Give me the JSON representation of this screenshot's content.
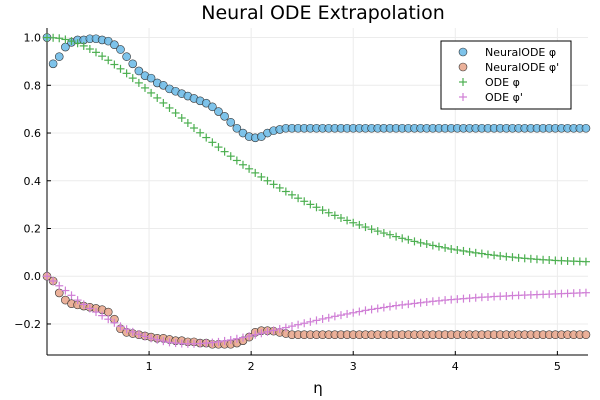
{
  "chart_data": {
    "type": "scatter",
    "title": "Neural ODE Extrapolation",
    "xlabel": "η",
    "ylabel": "",
    "xlim": [
      0.0,
      5.3
    ],
    "ylim": [
      -0.33,
      1.04
    ],
    "xticks": [
      1,
      2,
      3,
      4,
      5
    ],
    "yticks": [
      -0.2,
      0.0,
      0.2,
      0.4,
      0.6,
      0.8,
      1.0
    ],
    "xtick_labels": [
      "1",
      "2",
      "3",
      "4",
      "5"
    ],
    "ytick_labels": [
      "−0.2",
      "0.0",
      "0.2",
      "0.4",
      "0.6",
      "0.8",
      "1.0"
    ],
    "grid": true,
    "legend_position": "top-right",
    "series": [
      {
        "name": "NeuralODE φ",
        "marker": "circle",
        "color": "#67b8e6",
        "x": [
          0.0,
          0.06,
          0.12,
          0.18,
          0.24,
          0.3,
          0.36,
          0.42,
          0.48,
          0.54,
          0.6,
          0.66,
          0.72,
          0.78,
          0.84,
          0.9,
          0.96,
          1.02,
          1.08,
          1.14,
          1.2,
          1.26,
          1.32,
          1.38,
          1.44,
          1.5,
          1.56,
          1.62,
          1.68,
          1.74,
          1.8,
          1.86,
          1.92,
          1.98,
          2.04,
          2.1,
          2.16,
          2.22,
          2.28,
          2.34,
          2.4,
          2.46,
          2.52,
          2.58,
          2.64,
          2.7,
          2.76,
          2.82,
          2.88,
          2.94,
          3.0,
          3.06,
          3.12,
          3.18,
          3.24,
          3.3,
          3.36,
          3.42,
          3.48,
          3.54,
          3.6,
          3.66,
          3.72,
          3.78,
          3.84,
          3.9,
          3.96,
          4.02,
          4.08,
          4.14,
          4.2,
          4.26,
          4.32,
          4.38,
          4.44,
          4.5,
          4.56,
          4.62,
          4.68,
          4.74,
          4.8,
          4.86,
          4.92,
          4.98,
          5.04,
          5.1,
          5.16,
          5.22,
          5.28
        ],
        "y": [
          1.0,
          0.89,
          0.92,
          0.96,
          0.98,
          0.99,
          0.99,
          0.995,
          0.995,
          0.99,
          0.985,
          0.97,
          0.95,
          0.92,
          0.89,
          0.86,
          0.84,
          0.83,
          0.81,
          0.8,
          0.785,
          0.775,
          0.765,
          0.755,
          0.745,
          0.735,
          0.725,
          0.71,
          0.69,
          0.67,
          0.645,
          0.62,
          0.6,
          0.585,
          0.58,
          0.585,
          0.6,
          0.61,
          0.615,
          0.62,
          0.62,
          0.62,
          0.62,
          0.62,
          0.62,
          0.62,
          0.62,
          0.62,
          0.62,
          0.62,
          0.62,
          0.62,
          0.62,
          0.62,
          0.62,
          0.62,
          0.62,
          0.62,
          0.62,
          0.62,
          0.62,
          0.62,
          0.62,
          0.62,
          0.62,
          0.62,
          0.62,
          0.62,
          0.62,
          0.62,
          0.62,
          0.62,
          0.62,
          0.62,
          0.62,
          0.62,
          0.62,
          0.62,
          0.62,
          0.62,
          0.62,
          0.62,
          0.62,
          0.62,
          0.62,
          0.62,
          0.62,
          0.62,
          0.62
        ]
      },
      {
        "name": "NeuralODE φ'",
        "marker": "circle",
        "color": "#e8a388",
        "x": [
          0.0,
          0.06,
          0.12,
          0.18,
          0.24,
          0.3,
          0.36,
          0.42,
          0.48,
          0.54,
          0.6,
          0.66,
          0.72,
          0.78,
          0.84,
          0.9,
          0.96,
          1.02,
          1.08,
          1.14,
          1.2,
          1.26,
          1.32,
          1.38,
          1.44,
          1.5,
          1.56,
          1.62,
          1.68,
          1.74,
          1.8,
          1.86,
          1.92,
          1.98,
          2.04,
          2.1,
          2.16,
          2.22,
          2.28,
          2.34,
          2.4,
          2.46,
          2.52,
          2.58,
          2.64,
          2.7,
          2.76,
          2.82,
          2.88,
          2.94,
          3.0,
          3.06,
          3.12,
          3.18,
          3.24,
          3.3,
          3.36,
          3.42,
          3.48,
          3.54,
          3.6,
          3.66,
          3.72,
          3.78,
          3.84,
          3.9,
          3.96,
          4.02,
          4.08,
          4.14,
          4.2,
          4.26,
          4.32,
          4.38,
          4.44,
          4.5,
          4.56,
          4.62,
          4.68,
          4.74,
          4.8,
          4.86,
          4.92,
          4.98,
          5.04,
          5.1,
          5.16,
          5.22,
          5.28
        ],
        "y": [
          0.0,
          -0.02,
          -0.07,
          -0.1,
          -0.115,
          -0.12,
          -0.125,
          -0.13,
          -0.135,
          -0.14,
          -0.15,
          -0.18,
          -0.22,
          -0.235,
          -0.24,
          -0.245,
          -0.25,
          -0.255,
          -0.26,
          -0.26,
          -0.265,
          -0.27,
          -0.27,
          -0.275,
          -0.275,
          -0.28,
          -0.28,
          -0.285,
          -0.285,
          -0.285,
          -0.285,
          -0.28,
          -0.27,
          -0.255,
          -0.235,
          -0.228,
          -0.228,
          -0.23,
          -0.235,
          -0.24,
          -0.245,
          -0.245,
          -0.245,
          -0.245,
          -0.245,
          -0.245,
          -0.245,
          -0.245,
          -0.245,
          -0.245,
          -0.245,
          -0.245,
          -0.245,
          -0.245,
          -0.245,
          -0.245,
          -0.245,
          -0.245,
          -0.245,
          -0.245,
          -0.245,
          -0.245,
          -0.245,
          -0.245,
          -0.245,
          -0.245,
          -0.245,
          -0.245,
          -0.245,
          -0.245,
          -0.245,
          -0.245,
          -0.245,
          -0.245,
          -0.245,
          -0.245,
          -0.245,
          -0.245,
          -0.245,
          -0.245,
          -0.245,
          -0.245,
          -0.245,
          -0.245,
          -0.245,
          -0.245,
          -0.245,
          -0.245,
          -0.245
        ]
      },
      {
        "name": "ODE φ",
        "marker": "cross",
        "color": "#4caf50",
        "x": [
          0.0,
          0.06,
          0.12,
          0.18,
          0.24,
          0.3,
          0.36,
          0.42,
          0.48,
          0.54,
          0.6,
          0.66,
          0.72,
          0.78,
          0.84,
          0.9,
          0.96,
          1.02,
          1.08,
          1.14,
          1.2,
          1.26,
          1.32,
          1.38,
          1.44,
          1.5,
          1.56,
          1.62,
          1.68,
          1.74,
          1.8,
          1.86,
          1.92,
          1.98,
          2.04,
          2.1,
          2.16,
          2.22,
          2.28,
          2.34,
          2.4,
          2.46,
          2.52,
          2.58,
          2.64,
          2.7,
          2.76,
          2.82,
          2.88,
          2.94,
          3.0,
          3.06,
          3.12,
          3.18,
          3.24,
          3.3,
          3.36,
          3.42,
          3.48,
          3.54,
          3.6,
          3.66,
          3.72,
          3.78,
          3.84,
          3.9,
          3.96,
          4.02,
          4.08,
          4.14,
          4.2,
          4.26,
          4.32,
          4.38,
          4.44,
          4.5,
          4.56,
          4.62,
          4.68,
          4.74,
          4.8,
          4.86,
          4.92,
          4.98,
          5.04,
          5.1,
          5.16,
          5.22,
          5.28
        ],
        "y": [
          1.0,
          0.999,
          0.997,
          0.992,
          0.985,
          0.976,
          0.965,
          0.952,
          0.938,
          0.922,
          0.905,
          0.887,
          0.869,
          0.85,
          0.83,
          0.81,
          0.789,
          0.768,
          0.747,
          0.726,
          0.705,
          0.684,
          0.663,
          0.642,
          0.621,
          0.601,
          0.581,
          0.561,
          0.541,
          0.522,
          0.503,
          0.485,
          0.467,
          0.45,
          0.433,
          0.416,
          0.4,
          0.385,
          0.37,
          0.355,
          0.341,
          0.327,
          0.314,
          0.301,
          0.289,
          0.277,
          0.266,
          0.255,
          0.244,
          0.234,
          0.224,
          0.215,
          0.206,
          0.197,
          0.189,
          0.181,
          0.174,
          0.166,
          0.159,
          0.153,
          0.146,
          0.14,
          0.135,
          0.129,
          0.124,
          0.119,
          0.114,
          0.11,
          0.106,
          0.102,
          0.098,
          0.095,
          0.091,
          0.088,
          0.085,
          0.082,
          0.08,
          0.077,
          0.075,
          0.073,
          0.071,
          0.069,
          0.068,
          0.066,
          0.065,
          0.064,
          0.063,
          0.062,
          0.061
        ]
      },
      {
        "name": "ODE φ'",
        "marker": "cross",
        "color": "#d07fd6",
        "x": [
          0.0,
          0.06,
          0.12,
          0.18,
          0.24,
          0.3,
          0.36,
          0.42,
          0.48,
          0.54,
          0.6,
          0.66,
          0.72,
          0.78,
          0.84,
          0.9,
          0.96,
          1.02,
          1.08,
          1.14,
          1.2,
          1.26,
          1.32,
          1.38,
          1.44,
          1.5,
          1.56,
          1.62,
          1.68,
          1.74,
          1.8,
          1.86,
          1.92,
          1.98,
          2.04,
          2.1,
          2.16,
          2.22,
          2.28,
          2.34,
          2.4,
          2.46,
          2.52,
          2.58,
          2.64,
          2.7,
          2.76,
          2.82,
          2.88,
          2.94,
          3.0,
          3.06,
          3.12,
          3.18,
          3.24,
          3.3,
          3.36,
          3.42,
          3.48,
          3.54,
          3.6,
          3.66,
          3.72,
          3.78,
          3.84,
          3.9,
          3.96,
          4.02,
          4.08,
          4.14,
          4.2,
          4.26,
          4.32,
          4.38,
          4.44,
          4.5,
          4.56,
          4.62,
          4.68,
          4.74,
          4.8,
          4.86,
          4.92,
          4.98,
          5.04,
          5.1,
          5.16,
          5.22,
          5.28
        ],
        "y": [
          0.0,
          -0.02,
          -0.04,
          -0.06,
          -0.08,
          -0.1,
          -0.118,
          -0.135,
          -0.15,
          -0.165,
          -0.18,
          -0.195,
          -0.21,
          -0.222,
          -0.233,
          -0.243,
          -0.252,
          -0.26,
          -0.266,
          -0.272,
          -0.277,
          -0.28,
          -0.282,
          -0.283,
          -0.283,
          -0.282,
          -0.28,
          -0.278,
          -0.275,
          -0.271,
          -0.267,
          -0.262,
          -0.257,
          -0.251,
          -0.245,
          -0.239,
          -0.233,
          -0.227,
          -0.221,
          -0.215,
          -0.209,
          -0.203,
          -0.197,
          -0.191,
          -0.185,
          -0.179,
          -0.174,
          -0.168,
          -0.163,
          -0.158,
          -0.153,
          -0.148,
          -0.143,
          -0.139,
          -0.135,
          -0.131,
          -0.127,
          -0.123,
          -0.12,
          -0.117,
          -0.114,
          -0.111,
          -0.108,
          -0.105,
          -0.103,
          -0.1,
          -0.098,
          -0.096,
          -0.094,
          -0.092,
          -0.09,
          -0.088,
          -0.087,
          -0.085,
          -0.084,
          -0.083,
          -0.081,
          -0.08,
          -0.079,
          -0.078,
          -0.077,
          -0.076,
          -0.075,
          -0.074,
          -0.073,
          -0.072,
          -0.071,
          -0.07,
          -0.069
        ]
      }
    ]
  }
}
